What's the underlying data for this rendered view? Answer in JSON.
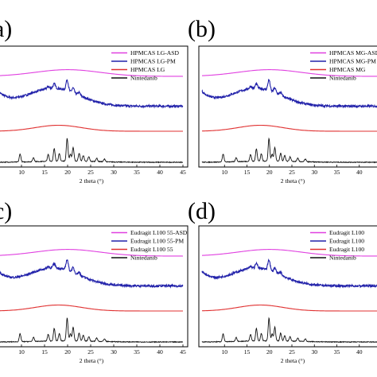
{
  "chart_data": [
    {
      "type": "line",
      "panel_label": "(a)",
      "xlabel": "2 theta (°)",
      "xlim": [
        5,
        45
      ],
      "x_ticks": [
        "10",
        "15",
        "20",
        "25",
        "30",
        "35",
        "40",
        "45"
      ],
      "legend_position": "top-right",
      "series": [
        {
          "name": "HPMCAS LG-ASD",
          "color": "#e040e0",
          "profile": "halo",
          "offset": 3.6
        },
        {
          "name": "HPMCAS LG-PM",
          "color": "#2222aa",
          "profile": "pm",
          "offset": 2.35
        },
        {
          "name": "HPMCAS LG",
          "color": "#e03030",
          "profile": "halo_small",
          "offset": 1.3
        },
        {
          "name": "Nintedanib",
          "color": "#111111",
          "profile": "crystal",
          "offset": 0.0
        }
      ]
    },
    {
      "type": "line",
      "panel_label": "(b)",
      "xlabel": "2 theta (°)",
      "xlim": [
        5,
        45
      ],
      "x_ticks": [
        "10",
        "15",
        "20",
        "25",
        "30",
        "35",
        "40",
        "45"
      ],
      "legend_position": "top-right",
      "series": [
        {
          "name": "HPMCAS MG-ASD",
          "color": "#e040e0",
          "profile": "halo",
          "offset": 3.6
        },
        {
          "name": "HPMCAS MG-PM",
          "color": "#2222aa",
          "profile": "pm",
          "offset": 2.35
        },
        {
          "name": "HPMCAS MG",
          "color": "#e03030",
          "profile": "halo_small",
          "offset": 1.3
        },
        {
          "name": "Nintedanib",
          "color": "#111111",
          "profile": "crystal",
          "offset": 0.0
        }
      ]
    },
    {
      "type": "line",
      "panel_label": "(c)",
      "xlabel": "2 theta (°)",
      "xlim": [
        5,
        45
      ],
      "x_ticks": [
        "10",
        "15",
        "20",
        "25",
        "30",
        "35",
        "40",
        "45"
      ],
      "legend_position": "top-right",
      "series": [
        {
          "name": "Eudragit L100 55-ASD",
          "color": "#e040e0",
          "profile": "halo",
          "offset": 3.6
        },
        {
          "name": "Eudragit L100 55-PM",
          "color": "#2222aa",
          "profile": "pm",
          "offset": 2.35
        },
        {
          "name": "Eudragit L100 55",
          "color": "#e03030",
          "profile": "halo_small",
          "offset": 1.3
        },
        {
          "name": "Nintedanib",
          "color": "#111111",
          "profile": "crystal",
          "offset": 0.0
        }
      ]
    },
    {
      "type": "line",
      "panel_label": "(d)",
      "xlabel": "2 theta (°)",
      "xlim": [
        5,
        45
      ],
      "x_ticks": [
        "10",
        "15",
        "20",
        "25",
        "30",
        "35",
        "40",
        "45"
      ],
      "legend_position": "top-right",
      "series": [
        {
          "name": "Eudragit L100",
          "color": "#e040e0",
          "profile": "halo",
          "offset": 3.6
        },
        {
          "name": "Eudragit L100",
          "color": "#2222aa",
          "profile": "pm",
          "offset": 2.35
        },
        {
          "name": "Eudragit L100",
          "color": "#e03030",
          "profile": "halo_small",
          "offset": 1.3
        },
        {
          "name": "Nintedanib",
          "color": "#111111",
          "profile": "crystal",
          "offset": 0.0
        }
      ]
    }
  ]
}
